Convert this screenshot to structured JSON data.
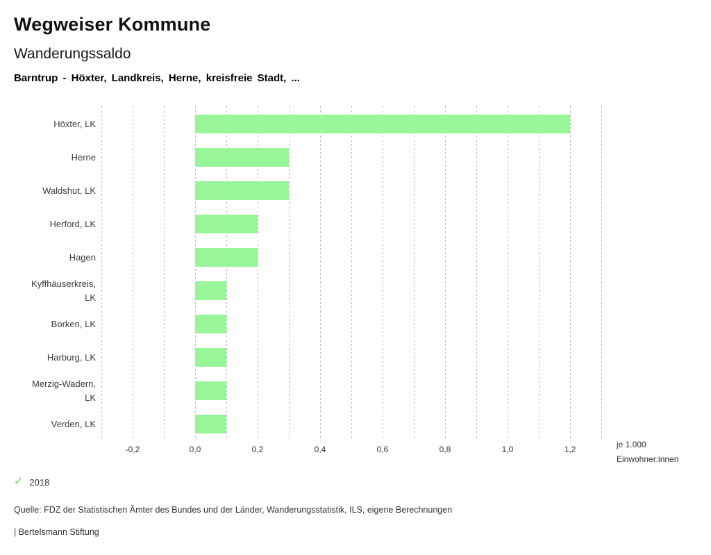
{
  "header": {
    "app_title": "Wegweiser Kommune",
    "chart_title": "Wanderungssaldo",
    "subtitle": "Barntrup - Höxter, Landkreis, Herne, kreisfreie Stadt, ..."
  },
  "chart_data": {
    "type": "bar",
    "orientation": "horizontal",
    "title": "Wanderungssaldo",
    "categories": [
      "Höxter, LK",
      "Herne",
      "Waldshut, LK",
      "Herford, LK",
      "Hagen",
      "Kyffhäuserkreis, LK",
      "Borken, LK",
      "Harburg, LK",
      "Merzig-Wadern, LK",
      "Verden, LK"
    ],
    "series": [
      {
        "name": "2018",
        "values": [
          1.2,
          0.3,
          0.3,
          0.2,
          0.2,
          0.1,
          0.1,
          0.1,
          0.1,
          0.1
        ]
      }
    ],
    "xlim": [
      -0.3,
      1.3
    ],
    "grid_step": 0.1,
    "grid": true,
    "x_tick_values": [
      -0.2,
      0.0,
      0.2,
      0.4,
      0.6,
      0.8,
      1.0,
      1.2
    ],
    "x_tick_labels": [
      "-0,2",
      "0,0",
      "0,2",
      "0,4",
      "0,6",
      "0,8",
      "1,0",
      "1,2"
    ],
    "xlabel_line1": "je 1.000",
    "xlabel_line2": "Einwohner:innen",
    "bar_color": "#98f598",
    "legend_position": "bottom-left"
  },
  "legend": {
    "check_icon": "✓",
    "year_label": "2018",
    "check_color": "#8ae08a"
  },
  "footer": {
    "source": "Quelle: FDZ der Statistischen Ämter des Bundes und der Länder, Wanderungsstatistik, ILS, eigene Berechnungen",
    "brand": "| Bertelsmann Stiftung"
  }
}
